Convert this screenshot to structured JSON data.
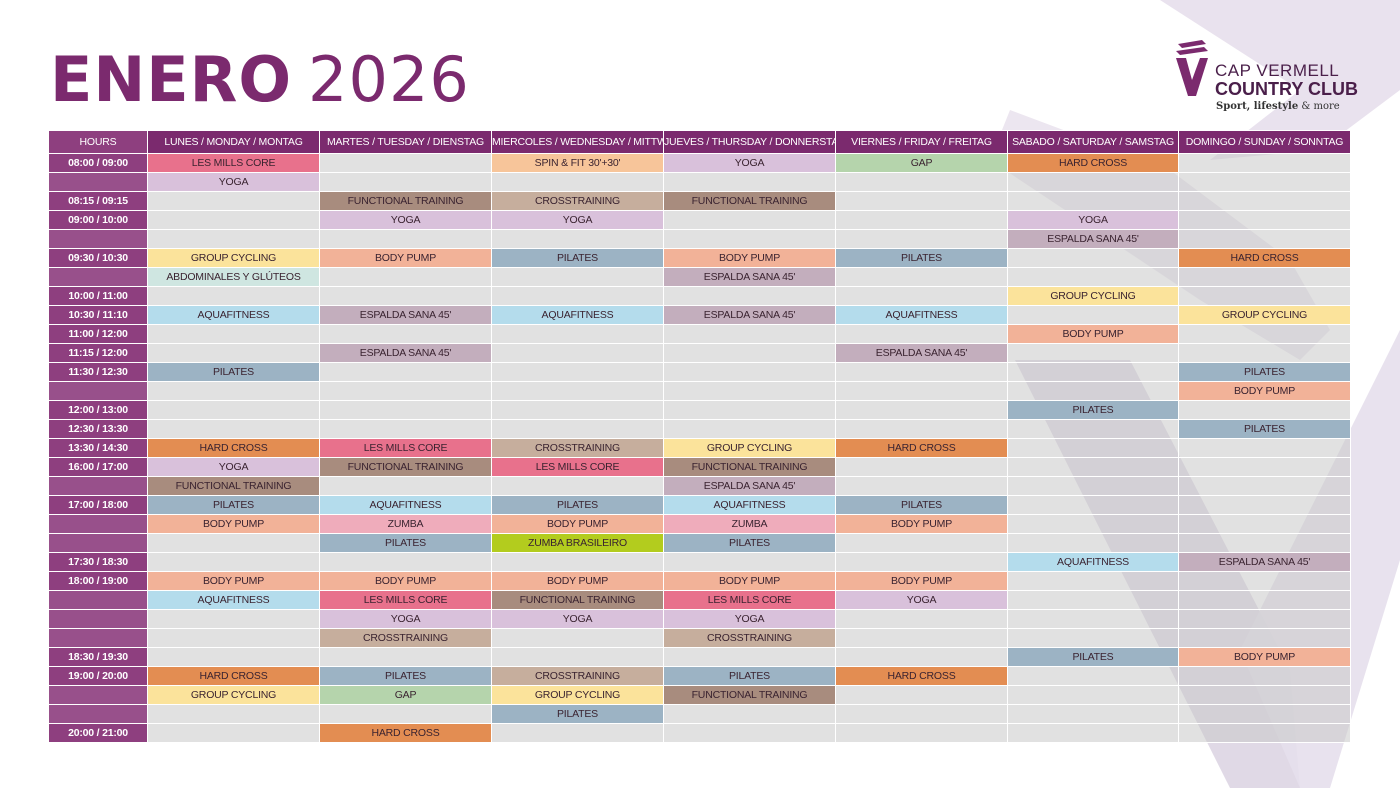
{
  "page": {
    "month": "ENERO",
    "year": "2026"
  },
  "logo": {
    "line1": "CAP VERMELL",
    "line2": "COUNTRY CLUB",
    "tag_bold": "Sport, lifestyle",
    "tag_rest": " & more"
  },
  "colors": {
    "brand": "#7b2a6e",
    "hours_column": "#8e3f7f",
    "empty_cell": "#e2e2e2"
  },
  "class_colors": {
    "LES MILLS CORE": "#e8718c",
    "YOGA": "#d9c1db",
    "SPIN & FIT 30'+30'": "#f7c59a",
    "GAP": "#b5d4ac",
    "HARD CROSS": "#e38d52",
    "FUNCTIONAL TRAINING": "#a88c7e",
    "CROSSTRAINING": "#c6ae9d",
    "ESPALDA SANA 45'": "#c3aebd",
    "GROUP CYCLING": "#fbe39b",
    "BODY PUMP": "#f2b298",
    "PILATES": "#9cb3c4",
    "ABDOMINALES Y GLÚTEOS": "#cfe6e1",
    "AQUAFITNESS": "#b4dcec",
    "ZUMBA": "#efacbb",
    "ZUMBA BRASILEIRO": "#b3cc1e"
  },
  "schedule": {
    "header": [
      "HOURS",
      "LUNES / MONDAY / MONTAG",
      "MARTES / TUESDAY / DIENSTAG",
      "MIERCOLES / WEDNESDAY / MITTWOCH",
      "JUEVES / THURSDAY / DONNERSTAG",
      "VIERNES / FRIDAY / FREITAG",
      "SABADO / SATURDAY / SAMSTAG",
      "DOMINGO / SUNDAY / SONNTAG"
    ],
    "rows": [
      {
        "hour": "08:00 / 09:00",
        "cells": [
          "LES MILLS CORE",
          "",
          "SPIN & FIT 30'+30'",
          "YOGA",
          "GAP",
          "HARD CROSS",
          ""
        ]
      },
      {
        "hour": "",
        "cells": [
          "YOGA",
          "",
          "",
          "",
          "",
          "",
          ""
        ]
      },
      {
        "hour": "08:15 / 09:15",
        "cells": [
          "",
          "FUNCTIONAL TRAINING",
          "CROSSTRAINING",
          "FUNCTIONAL TRAINING",
          "",
          "",
          ""
        ]
      },
      {
        "hour": "09:00 / 10:00",
        "cells": [
          "",
          "YOGA",
          "YOGA",
          "",
          "",
          "YOGA",
          ""
        ]
      },
      {
        "hour": "",
        "cells": [
          "",
          "",
          "",
          "",
          "",
          "ESPALDA SANA 45'",
          ""
        ]
      },
      {
        "hour": "09:30 / 10:30",
        "cells": [
          "GROUP CYCLING",
          "BODY PUMP",
          "PILATES",
          "BODY PUMP",
          "PILATES",
          "",
          "HARD CROSS"
        ]
      },
      {
        "hour": "",
        "cells": [
          "ABDOMINALES Y GLÚTEOS",
          "",
          "",
          "ESPALDA SANA 45'",
          "",
          "",
          ""
        ]
      },
      {
        "hour": "10:00 / 11:00",
        "cells": [
          "",
          "",
          "",
          "",
          "",
          "GROUP CYCLING",
          ""
        ]
      },
      {
        "hour": "10:30 / 11:10",
        "cells": [
          "AQUAFITNESS",
          "ESPALDA SANA 45'",
          "AQUAFITNESS",
          "ESPALDA SANA 45'",
          "AQUAFITNESS",
          "",
          "GROUP CYCLING"
        ]
      },
      {
        "hour": "11:00 / 12:00",
        "cells": [
          "",
          "",
          "",
          "",
          "",
          "BODY PUMP",
          ""
        ]
      },
      {
        "hour": "11:15 / 12:00",
        "cells": [
          "",
          "ESPALDA SANA 45'",
          "",
          "",
          "ESPALDA SANA 45'",
          "",
          ""
        ]
      },
      {
        "hour": "11:30 / 12:30",
        "cells": [
          "PILATES",
          "",
          "",
          "",
          "",
          "",
          "PILATES"
        ]
      },
      {
        "hour": "",
        "cells": [
          "",
          "",
          "",
          "",
          "",
          "",
          "BODY PUMP"
        ]
      },
      {
        "hour": "12:00 / 13:00",
        "cells": [
          "",
          "",
          "",
          "",
          "",
          "PILATES",
          ""
        ]
      },
      {
        "hour": "12:30 / 13:30",
        "cells": [
          "",
          "",
          "",
          "",
          "",
          "",
          "PILATES"
        ]
      },
      {
        "hour": "13:30 / 14:30",
        "cells": [
          "HARD CROSS",
          "LES MILLS CORE",
          "CROSSTRAINING",
          "GROUP CYCLING",
          "HARD CROSS",
          "",
          ""
        ]
      },
      {
        "hour": "16:00 / 17:00",
        "cells": [
          "YOGA",
          "FUNCTIONAL TRAINING",
          "LES MILLS CORE",
          "FUNCTIONAL TRAINING",
          "",
          "",
          ""
        ]
      },
      {
        "hour": "",
        "cells": [
          "FUNCTIONAL TRAINING",
          "",
          "",
          "ESPALDA SANA 45'",
          "",
          "",
          ""
        ]
      },
      {
        "hour": "17:00 / 18:00",
        "cells": [
          "PILATES",
          "AQUAFITNESS",
          "PILATES",
          "AQUAFITNESS",
          "PILATES",
          "",
          ""
        ]
      },
      {
        "hour": "",
        "cells": [
          "BODY PUMP",
          "ZUMBA",
          "BODY PUMP",
          "ZUMBA",
          "BODY PUMP",
          "",
          ""
        ]
      },
      {
        "hour": "",
        "cells": [
          "",
          "PILATES",
          "ZUMBA BRASILEIRO",
          "PILATES",
          "",
          "",
          ""
        ]
      },
      {
        "hour": "17:30 / 18:30",
        "cells": [
          "",
          "",
          "",
          "",
          "",
          "AQUAFITNESS",
          "ESPALDA SANA 45'"
        ]
      },
      {
        "hour": "18:00 / 19:00",
        "cells": [
          "BODY PUMP",
          "BODY PUMP",
          "BODY PUMP",
          "BODY PUMP",
          "BODY PUMP",
          "",
          ""
        ]
      },
      {
        "hour": "",
        "cells": [
          "AQUAFITNESS",
          "LES MILLS CORE",
          "FUNCTIONAL TRAINING",
          "LES MILLS CORE",
          "YOGA",
          "",
          ""
        ]
      },
      {
        "hour": "",
        "cells": [
          "",
          "YOGA",
          "YOGA",
          "YOGA",
          "",
          "",
          ""
        ]
      },
      {
        "hour": "",
        "cells": [
          "",
          "CROSSTRAINING",
          "",
          "CROSSTRAINING",
          "",
          "",
          ""
        ]
      },
      {
        "hour": "18:30 / 19:30",
        "cells": [
          "",
          "",
          "",
          "",
          "",
          "PILATES",
          "BODY PUMP"
        ]
      },
      {
        "hour": "19:00 / 20:00",
        "cells": [
          "HARD CROSS",
          "PILATES",
          "CROSSTRAINING",
          "PILATES",
          "HARD CROSS",
          "",
          ""
        ]
      },
      {
        "hour": "",
        "cells": [
          "GROUP CYCLING",
          "GAP",
          "GROUP CYCLING",
          "FUNCTIONAL TRAINING",
          "",
          "",
          ""
        ]
      },
      {
        "hour": "",
        "cells": [
          "",
          "",
          "PILATES",
          "",
          "",
          "",
          ""
        ]
      },
      {
        "hour": "20:00 / 21:00",
        "cells": [
          "",
          "HARD CROSS",
          "",
          "",
          "",
          "",
          ""
        ]
      }
    ]
  }
}
